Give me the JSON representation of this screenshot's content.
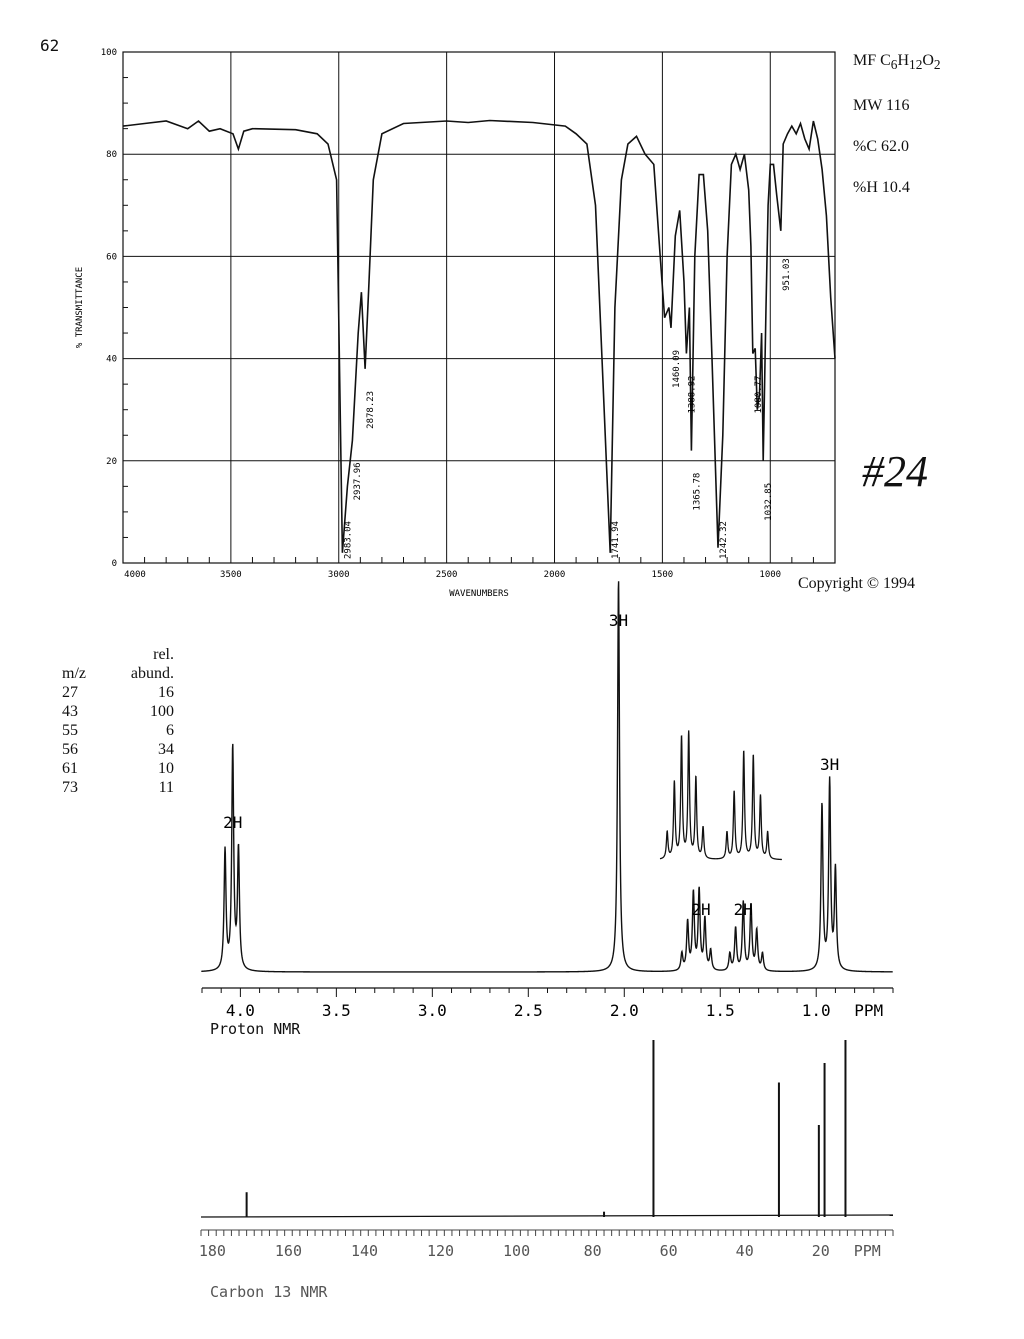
{
  "page_number": "62",
  "formula": {
    "mf_prefix": "MF C",
    "c": "6",
    "h_prefix": "H",
    "h": "12",
    "o_prefix": "O",
    "o": "2",
    "mw": "MW 116",
    "pc": "%C 62.0",
    "ph": "%H 10.4"
  },
  "copyright": "Copyright © 1994",
  "sample_number": "#24",
  "ms_table": {
    "header1": "rel.",
    "header_mz": "m/z",
    "header_abund": "abund.",
    "rows": [
      {
        "mz": "27",
        "abund": "16"
      },
      {
        "mz": "43",
        "abund": "100"
      },
      {
        "mz": "55",
        "abund": "6"
      },
      {
        "mz": "56",
        "abund": "34"
      },
      {
        "mz": "61",
        "abund": "10"
      },
      {
        "mz": "73",
        "abund": "11"
      }
    ]
  },
  "colors": {
    "ink": "#111111",
    "grid": "#222222",
    "faint": "#666666"
  },
  "chart_data": [
    {
      "type": "line",
      "xlabel": "WAVENUMBERS",
      "ylabel": "% TRANSMITTANCE",
      "xlim": [
        4000,
        700
      ],
      "ylim": [
        0,
        100
      ],
      "x_ticks": [
        "4000",
        "3500",
        "3000",
        "2500",
        "2000",
        "1500",
        "1000"
      ],
      "y_ticks": [
        "0",
        "20",
        "40",
        "60",
        "80",
        "100"
      ],
      "grid": true,
      "peak_labels": [
        "2983.04",
        "2937.96",
        "2878.23",
        "1741.94",
        "1460.09",
        "1388.92",
        "1365.78",
        "1242.32",
        "1080.77",
        "1032.85",
        "951.03"
      ],
      "spectrum": [
        [
          4000,
          85.5
        ],
        [
          3900,
          86
        ],
        [
          3800,
          86.5
        ],
        [
          3700,
          85
        ],
        [
          3650,
          86.5
        ],
        [
          3600,
          84.5
        ],
        [
          3550,
          85
        ],
        [
          3490,
          84
        ],
        [
          3465,
          81
        ],
        [
          3440,
          84.5
        ],
        [
          3400,
          85
        ],
        [
          3200,
          84.8
        ],
        [
          3100,
          84
        ],
        [
          3050,
          82
        ],
        [
          3010,
          75
        ],
        [
          2983,
          2
        ],
        [
          2960,
          15
        ],
        [
          2937,
          24
        ],
        [
          2910,
          45
        ],
        [
          2895,
          53
        ],
        [
          2878,
          38
        ],
        [
          2860,
          55
        ],
        [
          2840,
          75
        ],
        [
          2800,
          84
        ],
        [
          2700,
          86
        ],
        [
          2500,
          86.5
        ],
        [
          2400,
          86.2
        ],
        [
          2300,
          86.6
        ],
        [
          2100,
          86.2
        ],
        [
          1950,
          85.5
        ],
        [
          1900,
          84
        ],
        [
          1850,
          82
        ],
        [
          1810,
          70
        ],
        [
          1780,
          40
        ],
        [
          1741.94,
          2
        ],
        [
          1720,
          50
        ],
        [
          1690,
          75
        ],
        [
          1660,
          82
        ],
        [
          1620,
          83.5
        ],
        [
          1580,
          80
        ],
        [
          1540,
          78
        ],
        [
          1510,
          60
        ],
        [
          1490,
          48
        ],
        [
          1470,
          50
        ],
        [
          1460,
          46
        ],
        [
          1440,
          64
        ],
        [
          1420,
          69
        ],
        [
          1400,
          55
        ],
        [
          1388.92,
          41
        ],
        [
          1375,
          50
        ],
        [
          1365.78,
          22
        ],
        [
          1350,
          60
        ],
        [
          1330,
          76
        ],
        [
          1310,
          76
        ],
        [
          1290,
          65
        ],
        [
          1270,
          40
        ],
        [
          1242.32,
          3
        ],
        [
          1220,
          25
        ],
        [
          1200,
          60
        ],
        [
          1180,
          78
        ],
        [
          1160,
          80
        ],
        [
          1140,
          77
        ],
        [
          1120,
          80
        ],
        [
          1100,
          73
        ],
        [
          1090,
          62
        ],
        [
          1080.77,
          41
        ],
        [
          1070,
          42
        ],
        [
          1060,
          30
        ],
        [
          1050,
          33
        ],
        [
          1040,
          45
        ],
        [
          1032.85,
          20
        ],
        [
          1020,
          50
        ],
        [
          1010,
          70
        ],
        [
          1000,
          78
        ],
        [
          985,
          78
        ],
        [
          970,
          72
        ],
        [
          951.03,
          65
        ],
        [
          940,
          82
        ],
        [
          920,
          84
        ],
        [
          900,
          85.5
        ],
        [
          880,
          84
        ],
        [
          860,
          86
        ],
        [
          840,
          83
        ],
        [
          820,
          81
        ],
        [
          800,
          86.5
        ],
        [
          780,
          83
        ],
        [
          760,
          77
        ],
        [
          740,
          68
        ],
        [
          720,
          52
        ],
        [
          700,
          40
        ]
      ]
    },
    {
      "type": "line",
      "title": "Proton NMR",
      "xlabel": "PPM",
      "xlim": [
        4.2,
        0.6
      ],
      "x_ticks": [
        "4.0",
        "3.5",
        "3.0",
        "2.5",
        "2.0",
        "1.5",
        "1.0"
      ],
      "x_unit": "PPM",
      "integrations": [
        {
          "ppm": 4.04,
          "label": "2H"
        },
        {
          "ppm": 2.03,
          "label": "3H"
        },
        {
          "ppm": 1.6,
          "label": "2H"
        },
        {
          "ppm": 1.38,
          "label": "2H"
        },
        {
          "ppm": 0.93,
          "label": "3H"
        }
      ],
      "peaks": [
        [
          4.08,
          0.42
        ],
        [
          4.04,
          0.78
        ],
        [
          4.01,
          0.42
        ],
        [
          2.03,
          1.38
        ],
        [
          1.7,
          0.06
        ],
        [
          1.67,
          0.17
        ],
        [
          1.64,
          0.27
        ],
        [
          1.61,
          0.28
        ],
        [
          1.58,
          0.18
        ],
        [
          1.55,
          0.07
        ],
        [
          1.45,
          0.06
        ],
        [
          1.42,
          0.15
        ],
        [
          1.38,
          0.24
        ],
        [
          1.34,
          0.23
        ],
        [
          1.31,
          0.14
        ],
        [
          1.28,
          0.06
        ],
        [
          0.97,
          0.58
        ],
        [
          0.93,
          0.66
        ],
        [
          0.9,
          0.35
        ]
      ]
    },
    {
      "type": "line",
      "title": "Carbon 13 NMR",
      "xlabel": "PPM",
      "xlim": [
        183,
        1
      ],
      "x_ticks": [
        "180",
        "160",
        "140",
        "120",
        "100",
        "80",
        "60",
        "40",
        "20"
      ],
      "x_unit": "PPM",
      "peaks": [
        [
          171,
          0.14
        ],
        [
          77,
          0.03
        ],
        [
          64,
          1.0
        ],
        [
          31,
          0.76
        ],
        [
          20.5,
          0.52
        ],
        [
          19,
          0.87
        ],
        [
          13.5,
          1.0
        ]
      ]
    }
  ]
}
